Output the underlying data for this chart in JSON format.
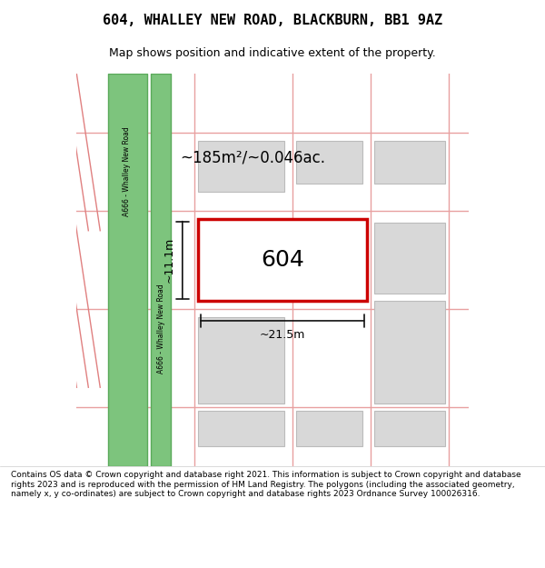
{
  "title": "604, WHALLEY NEW ROAD, BLACKBURN, BB1 9AZ",
  "subtitle": "Map shows position and indicative extent of the property.",
  "footer": "Contains OS data © Crown copyright and database right 2021. This information is subject to Crown copyright and database rights 2023 and is reproduced with the permission of HM Land Registry. The polygons (including the associated geometry, namely x, y co-ordinates) are subject to Crown copyright and database rights 2023 Ordnance Survey 100026316.",
  "bg_color": "#ffffff",
  "map_bg": "#f5f0f0",
  "road_color": "#7dc47d",
  "road_border": "#5aaa5a",
  "grid_color": "#e8a0a0",
  "plot_outline_color": "#cc0000",
  "building_fill": "#d8d8d8",
  "building_outline": "#bbbbbb",
  "dim_color": "#111111",
  "area_text": "~185m²/~0.046ac.",
  "number_text": "604",
  "width_label": "~21.5m",
  "height_label": "~11.1m",
  "road_label": "A666 - Whalley New Road"
}
